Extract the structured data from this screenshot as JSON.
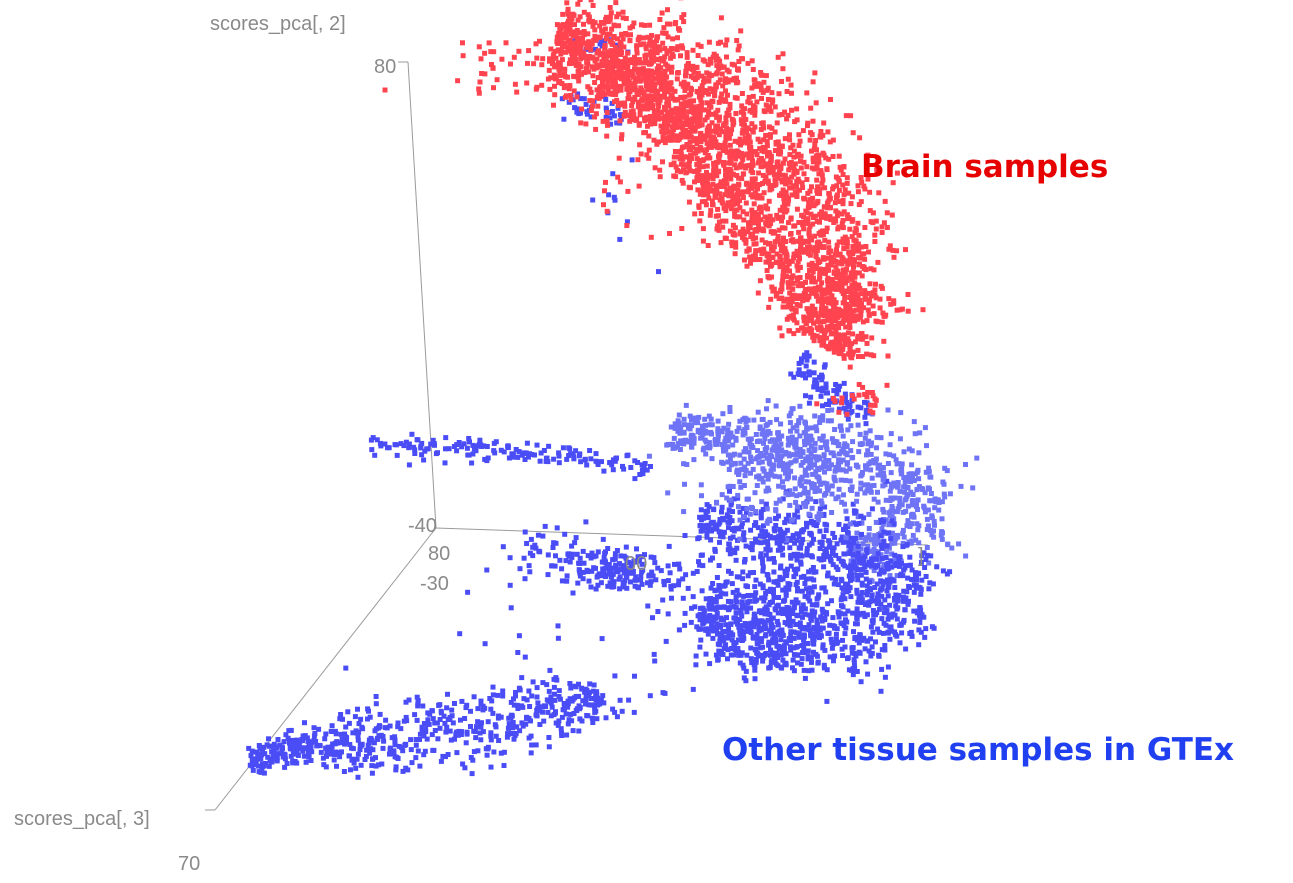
{
  "chart_data": {
    "type": "scatter",
    "is_3d": true,
    "axes": {
      "y": {
        "label": "scores_pca[, 2]",
        "tick_max": "80",
        "tick_min": "-40"
      },
      "z": {
        "label": "scores_pca[, 3]",
        "tick_near": "-30",
        "tick_far": "70"
      },
      "x": {
        "tick_start": "80",
        "tick_mid_partial": "00",
        "tick_end_partial": "]"
      }
    },
    "annotations": [
      {
        "text": "Brain samples",
        "color": "#e60000"
      },
      {
        "text": "Other tissue samples in GTEx",
        "color": "#1f3ff0"
      }
    ],
    "series_colors": {
      "brain": "#ff4450",
      "other": "#4a4cf5",
      "other_light": "#6e74f5"
    },
    "grid": false,
    "legend": "none"
  }
}
